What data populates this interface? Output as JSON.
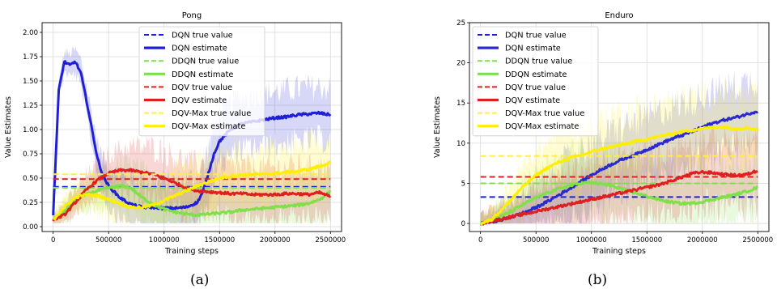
{
  "chart_data": [
    {
      "type": "line",
      "title": "Pong",
      "xlabel": "Training steps",
      "ylabel": "Value Estimates",
      "sublabel": "(a)",
      "xlim": [
        -100000,
        2600000
      ],
      "ylim": [
        -0.05,
        2.1
      ],
      "xticks": [
        0,
        500000,
        1000000,
        1500000,
        2000000,
        2500000
      ],
      "yticks": [
        "0.00",
        "0.25",
        "0.50",
        "0.75",
        "1.00",
        "1.25",
        "1.50",
        "1.75",
        "2.00"
      ],
      "grid": true,
      "legend_position": "top-center",
      "series": [
        {
          "name": "DQN true value",
          "style": "dashed",
          "color": "#1f1fd6",
          "x": [
            0,
            2500000
          ],
          "y": [
            0.41,
            0.41
          ]
        },
        {
          "name": "DQN estimate",
          "style": "solid",
          "color": "#1f1fd6",
          "x": [
            0,
            50000,
            100000,
            150000,
            200000,
            250000,
            300000,
            350000,
            400000,
            450000,
            500000,
            600000,
            700000,
            800000,
            900000,
            1000000,
            1100000,
            1200000,
            1300000,
            1350000,
            1400000,
            1450000,
            1500000,
            1600000,
            1700000,
            1800000,
            1900000,
            2000000,
            2100000,
            2200000,
            2300000,
            2400000,
            2500000
          ],
          "y": [
            0.12,
            1.4,
            1.7,
            1.66,
            1.7,
            1.58,
            1.3,
            1.0,
            0.7,
            0.52,
            0.42,
            0.3,
            0.23,
            0.2,
            0.2,
            0.19,
            0.19,
            0.2,
            0.25,
            0.36,
            0.55,
            0.75,
            0.88,
            1.0,
            1.06,
            1.08,
            1.1,
            1.12,
            1.13,
            1.15,
            1.16,
            1.17,
            1.15
          ]
        },
        {
          "name": "DDQN true value",
          "style": "dashed",
          "color": "#7fe04a",
          "x": [
            0,
            2500000
          ],
          "y": [
            0.4,
            0.4
          ]
        },
        {
          "name": "DDQN estimate",
          "style": "solid",
          "color": "#7fe04a",
          "x": [
            0,
            100000,
            200000,
            300000,
            400000,
            500000,
            600000,
            700000,
            800000,
            900000,
            1000000,
            1100000,
            1200000,
            1300000,
            1400000,
            1500000,
            1600000,
            1700000,
            1800000,
            1900000,
            2000000,
            2100000,
            2200000,
            2300000,
            2400000,
            2500000
          ],
          "y": [
            0.07,
            0.16,
            0.27,
            0.33,
            0.37,
            0.4,
            0.42,
            0.4,
            0.3,
            0.23,
            0.18,
            0.15,
            0.13,
            0.12,
            0.13,
            0.14,
            0.15,
            0.17,
            0.18,
            0.19,
            0.2,
            0.21,
            0.22,
            0.24,
            0.28,
            0.36
          ]
        },
        {
          "name": "DQV true value",
          "style": "dashed",
          "color": "#e02020",
          "x": [
            0,
            2500000
          ],
          "y": [
            0.49,
            0.49
          ]
        },
        {
          "name": "DQV estimate",
          "style": "solid",
          "color": "#e02020",
          "x": [
            0,
            100000,
            200000,
            300000,
            400000,
            500000,
            600000,
            700000,
            800000,
            900000,
            1000000,
            1100000,
            1200000,
            1300000,
            1400000,
            1500000,
            1600000,
            1700000,
            1800000,
            1900000,
            2000000,
            2100000,
            2200000,
            2300000,
            2400000,
            2500000
          ],
          "y": [
            0.07,
            0.12,
            0.25,
            0.38,
            0.48,
            0.55,
            0.58,
            0.58,
            0.56,
            0.54,
            0.5,
            0.45,
            0.4,
            0.37,
            0.36,
            0.35,
            0.34,
            0.34,
            0.33,
            0.33,
            0.33,
            0.34,
            0.34,
            0.33,
            0.35,
            0.31
          ]
        },
        {
          "name": "DQV-Max true value",
          "style": "dashed",
          "color": "#ffee44",
          "x": [
            0,
            2500000
          ],
          "y": [
            0.54,
            0.54
          ]
        },
        {
          "name": "DQV-Max estimate",
          "style": "solid",
          "color": "#ffee00",
          "x": [
            0,
            100000,
            200000,
            300000,
            400000,
            500000,
            600000,
            700000,
            800000,
            900000,
            1000000,
            1100000,
            1200000,
            1300000,
            1400000,
            1500000,
            1600000,
            1700000,
            1800000,
            1900000,
            2000000,
            2100000,
            2200000,
            2300000,
            2400000,
            2500000
          ],
          "y": [
            0.07,
            0.2,
            0.3,
            0.33,
            0.32,
            0.28,
            0.24,
            0.2,
            0.2,
            0.22,
            0.27,
            0.32,
            0.37,
            0.42,
            0.46,
            0.5,
            0.52,
            0.53,
            0.54,
            0.54,
            0.55,
            0.56,
            0.57,
            0.59,
            0.62,
            0.66
          ]
        }
      ]
    },
    {
      "type": "line",
      "title": "Enduro",
      "xlabel": "Training steps",
      "ylabel": "Value Estimates",
      "sublabel": "(b)",
      "xlim": [
        -100000,
        2600000
      ],
      "ylim": [
        -1,
        25
      ],
      "xticks": [
        0,
        500000,
        1000000,
        1500000,
        2000000,
        2500000
      ],
      "yticks": [
        "0",
        "5",
        "10",
        "15",
        "20",
        "25"
      ],
      "grid": true,
      "legend_position": "top-left",
      "series": [
        {
          "name": "DQN true value",
          "style": "dashed",
          "color": "#1f1fd6",
          "x": [
            0,
            2500000
          ],
          "y": [
            3.3,
            3.3
          ]
        },
        {
          "name": "DQN estimate",
          "style": "solid",
          "color": "#2a2ad0",
          "x": [
            0,
            100000,
            200000,
            300000,
            400000,
            500000,
            600000,
            700000,
            800000,
            900000,
            1000000,
            1100000,
            1200000,
            1300000,
            1400000,
            1500000,
            1600000,
            1700000,
            1800000,
            1900000,
            2000000,
            2100000,
            2200000,
            2300000,
            2400000,
            2500000
          ],
          "y": [
            0,
            0.2,
            0.5,
            0.9,
            1.4,
            2.0,
            2.7,
            3.5,
            4.3,
            5.2,
            6.0,
            6.8,
            7.5,
            8.1,
            8.6,
            9.2,
            9.8,
            10.4,
            10.9,
            11.4,
            12.0,
            12.5,
            12.9,
            13.2,
            13.6,
            14.0
          ]
        },
        {
          "name": "DDQN true value",
          "style": "dashed",
          "color": "#7fe04a",
          "x": [
            0,
            2500000
          ],
          "y": [
            5.0,
            5.0
          ]
        },
        {
          "name": "DDQN estimate",
          "style": "solid",
          "color": "#7fe04a",
          "x": [
            0,
            100000,
            200000,
            300000,
            400000,
            500000,
            600000,
            700000,
            800000,
            900000,
            1000000,
            1100000,
            1200000,
            1300000,
            1400000,
            1500000,
            1600000,
            1700000,
            1800000,
            1900000,
            2000000,
            2100000,
            2200000,
            2300000,
            2400000,
            2500000
          ],
          "y": [
            0,
            0.4,
            1.0,
            1.7,
            2.5,
            3.2,
            3.8,
            4.3,
            4.7,
            5.0,
            5.1,
            4.9,
            4.6,
            4.2,
            3.8,
            3.4,
            3.0,
            2.7,
            2.5,
            2.5,
            2.7,
            3.0,
            3.3,
            3.6,
            4.0,
            4.5
          ]
        },
        {
          "name": "DQV true value",
          "style": "dashed",
          "color": "#e02020",
          "x": [
            0,
            2500000
          ],
          "y": [
            5.8,
            5.8
          ]
        },
        {
          "name": "DQV estimate",
          "style": "solid",
          "color": "#e02020",
          "x": [
            0,
            100000,
            200000,
            300000,
            400000,
            500000,
            600000,
            700000,
            800000,
            900000,
            1000000,
            1100000,
            1200000,
            1300000,
            1400000,
            1500000,
            1600000,
            1700000,
            1800000,
            1900000,
            2000000,
            2100000,
            2200000,
            2300000,
            2400000,
            2500000
          ],
          "y": [
            0,
            0.3,
            0.6,
            0.9,
            1.2,
            1.5,
            1.8,
            2.1,
            2.4,
            2.7,
            3.0,
            3.3,
            3.6,
            3.9,
            4.2,
            4.5,
            4.8,
            5.2,
            5.7,
            6.2,
            6.4,
            6.3,
            6.1,
            6.0,
            6.1,
            6.6
          ]
        },
        {
          "name": "DQV-Max true value",
          "style": "dashed",
          "color": "#ffee44",
          "x": [
            0,
            2500000
          ],
          "y": [
            8.4,
            8.4
          ]
        },
        {
          "name": "DQV-Max estimate",
          "style": "solid",
          "color": "#ffee00",
          "x": [
            0,
            100000,
            200000,
            300000,
            400000,
            500000,
            600000,
            700000,
            800000,
            900000,
            1000000,
            1100000,
            1200000,
            1300000,
            1400000,
            1500000,
            1600000,
            1700000,
            1800000,
            1900000,
            2000000,
            2100000,
            2200000,
            2300000,
            2400000,
            2500000
          ],
          "y": [
            0,
            0.5,
            1.8,
            3.4,
            4.8,
            6.0,
            6.9,
            7.6,
            8.1,
            8.5,
            8.9,
            9.3,
            9.6,
            9.9,
            10.2,
            10.5,
            10.8,
            11.1,
            11.4,
            11.6,
            11.8,
            12.0,
            12.0,
            11.8,
            11.9,
            11.7
          ]
        }
      ]
    }
  ]
}
